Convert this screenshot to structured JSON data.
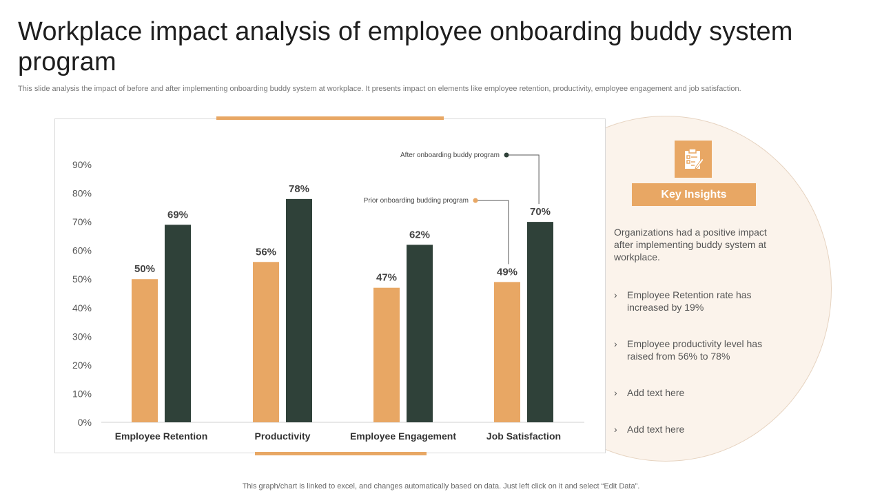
{
  "slide": {
    "title": "Workplace impact analysis of employee onboarding buddy system program",
    "subtitle": "This slide analysis the impact of before and after implementing onboarding buddy system at workplace. It presents impact on elements like employee retention, productivity, employee engagement and job satisfaction.",
    "footnote": "This graph/chart is linked to excel,  and changes automatically based on data. Just left click on it and select “Edit Data”."
  },
  "colors": {
    "prior": "#e8a764",
    "after": "#2f4139",
    "accent": "#e8a764",
    "circle_bg": "#fbf3eb"
  },
  "chart_data": {
    "type": "bar",
    "categories": [
      "Employee Retention",
      "Productivity",
      "Employee Engagement",
      "Job Satisfaction"
    ],
    "series": [
      {
        "name": "Prior onboarding budding program",
        "values": [
          50,
          56,
          47,
          49
        ],
        "color": "#e8a764"
      },
      {
        "name": "After onboarding buddy program",
        "values": [
          69,
          78,
          62,
          70
        ],
        "color": "#2f4139"
      }
    ],
    "y_ticks": [
      "0%",
      "10%",
      "20%",
      "30%",
      "40%",
      "50%",
      "60%",
      "70%",
      "80%",
      "90%"
    ],
    "data_labels": [
      [
        "50%",
        "56%",
        "47%",
        "49%"
      ],
      [
        "69%",
        "78%",
        "62%",
        "70%"
      ]
    ],
    "ylim": [
      0,
      90
    ],
    "grid": false,
    "legend": "callouts on Job Satisfaction bars"
  },
  "insights": {
    "icon": "clipboard-checklist-icon",
    "label": "Key Insights",
    "intro": "Organizations had a positive impact after implementing buddy system at workplace.",
    "bullets": [
      "Employee Retention rate has increased by 19%",
      "Employee productivity level has raised from 56% to 78%",
      "Add text here",
      "Add text here"
    ]
  }
}
